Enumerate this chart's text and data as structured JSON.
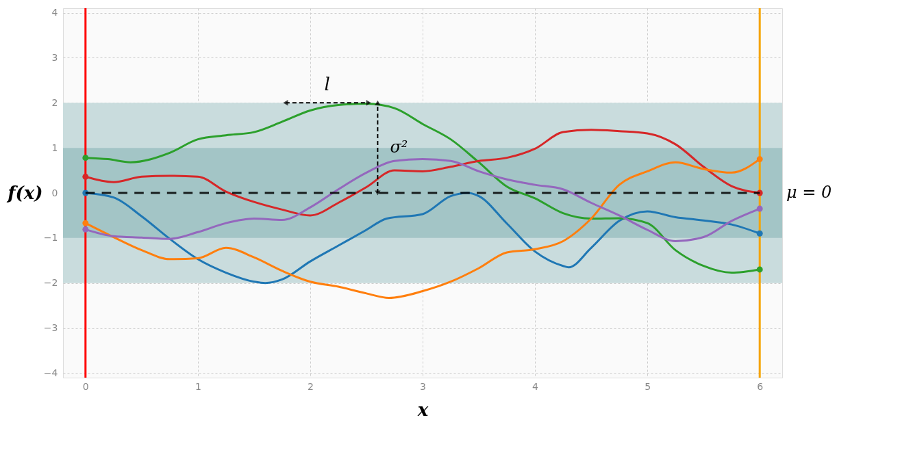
{
  "chart_data": {
    "type": "line",
    "xlabel": "x",
    "ylabel": "f(x)",
    "xlim": [
      -0.2,
      6.2
    ],
    "ylim": [
      -4.1,
      4.1
    ],
    "xticks": [
      0,
      1,
      2,
      3,
      4,
      5,
      6
    ],
    "yticks": [
      -4,
      -3,
      -2,
      -1,
      0,
      1,
      2,
      3,
      4
    ],
    "grid": true,
    "series": [
      {
        "color": "#1f77b4",
        "x": [
          0,
          0.25,
          0.5,
          0.75,
          1.0,
          1.25,
          1.5,
          1.6,
          1.75,
          2.0,
          2.25,
          2.5,
          2.68,
          3.0,
          3.25,
          3.4,
          3.5,
          3.75,
          4.0,
          4.25,
          4.3,
          4.5,
          4.75,
          5.0,
          5.25,
          5.5,
          5.75,
          6.0
        ],
        "values": [
          0.0,
          -0.1,
          -0.52,
          -1.02,
          -1.47,
          -1.77,
          -1.97,
          -2.0,
          -1.92,
          -1.52,
          -1.17,
          -0.82,
          -0.57,
          -0.47,
          -0.07,
          0.0,
          -0.07,
          -0.68,
          -1.3,
          -1.62,
          -1.65,
          -1.22,
          -0.62,
          -0.41,
          -0.54,
          -0.61,
          -0.7,
          -0.9
        ]
      },
      {
        "color": "#2ca02c",
        "x": [
          0,
          0.2,
          0.4,
          0.75,
          1.0,
          1.25,
          1.5,
          1.75,
          2.0,
          2.25,
          2.5,
          2.75,
          3.0,
          3.25,
          3.5,
          3.75,
          4.0,
          4.25,
          4.5,
          4.75,
          5.0,
          5.25,
          5.5,
          5.75,
          6.0
        ],
        "values": [
          0.78,
          0.75,
          0.68,
          0.89,
          1.19,
          1.28,
          1.35,
          1.58,
          1.83,
          1.95,
          1.98,
          1.88,
          1.53,
          1.19,
          0.68,
          0.14,
          -0.12,
          -0.45,
          -0.57,
          -0.56,
          -0.67,
          -1.27,
          -1.62,
          -1.77,
          -1.7
        ]
      },
      {
        "color": "#d62728",
        "x": [
          0,
          0.25,
          0.5,
          0.75,
          1.0,
          1.25,
          1.5,
          1.75,
          2.0,
          2.25,
          2.5,
          2.75,
          3.0,
          3.25,
          3.5,
          3.75,
          4.0,
          4.25,
          4.5,
          4.75,
          5.0,
          5.25,
          5.5,
          5.75,
          6.0
        ],
        "values": [
          0.36,
          0.24,
          0.36,
          0.38,
          0.36,
          0.03,
          -0.2,
          -0.37,
          -0.5,
          -0.22,
          0.13,
          0.5,
          0.48,
          0.58,
          0.71,
          0.78,
          0.98,
          1.35,
          1.4,
          1.37,
          1.32,
          1.08,
          0.58,
          0.15,
          0.0
        ]
      },
      {
        "color": "#ff7f0e",
        "x": [
          0,
          0.25,
          0.5,
          0.75,
          1.0,
          1.25,
          1.5,
          1.75,
          2.0,
          2.25,
          2.5,
          2.7,
          3.0,
          3.25,
          3.5,
          3.75,
          4.0,
          4.25,
          4.5,
          4.75,
          5.0,
          5.25,
          5.5,
          5.75,
          6.0
        ],
        "values": [
          -0.67,
          -0.98,
          -1.27,
          -1.47,
          -1.45,
          -1.22,
          -1.43,
          -1.73,
          -1.97,
          -2.08,
          -2.23,
          -2.33,
          -2.18,
          -1.97,
          -1.67,
          -1.32,
          -1.25,
          -1.07,
          -0.57,
          0.18,
          0.48,
          0.68,
          0.53,
          0.45,
          0.75
        ]
      },
      {
        "color": "#9467bd",
        "x": [
          0,
          0.25,
          0.5,
          0.75,
          1.0,
          1.25,
          1.5,
          1.75,
          2.0,
          2.25,
          2.5,
          2.75,
          3.0,
          3.25,
          3.5,
          3.75,
          4.0,
          4.25,
          4.5,
          4.75,
          5.0,
          5.25,
          5.5,
          5.75,
          6.0
        ],
        "values": [
          -0.81,
          -0.96,
          -0.99,
          -1.02,
          -0.87,
          -0.67,
          -0.57,
          -0.6,
          -0.32,
          0.08,
          0.45,
          0.71,
          0.75,
          0.71,
          0.48,
          0.3,
          0.18,
          0.08,
          -0.22,
          -0.5,
          -0.82,
          -1.07,
          -0.98,
          -0.62,
          -0.35
        ]
      },
      {
        "type": "scatter",
        "marker": "circle",
        "color": "#1f77b4",
        "x": [
          0,
          6
        ],
        "values": [
          0.0,
          -0.9
        ]
      },
      {
        "type": "scatter",
        "marker": "circle",
        "color": "#2ca02c",
        "x": [
          0,
          6
        ],
        "values": [
          0.78,
          -1.7
        ]
      },
      {
        "type": "scatter",
        "marker": "circle",
        "color": "#d62728",
        "x": [
          0,
          6
        ],
        "values": [
          0.36,
          0.0
        ]
      },
      {
        "type": "scatter",
        "marker": "circle",
        "color": "#ff7f0e",
        "x": [
          0,
          6
        ],
        "values": [
          -0.67,
          0.75
        ]
      },
      {
        "type": "scatter",
        "marker": "circle",
        "color": "#9467bd",
        "x": [
          0,
          6
        ],
        "values": [
          -0.81,
          -0.35
        ]
      }
    ],
    "bands": [
      {
        "axis": "y",
        "from": -2,
        "to": 2,
        "color": "#c9dcdd"
      },
      {
        "axis": "y",
        "from": -1,
        "to": 1,
        "color": "#a3c5c6"
      }
    ],
    "ref_lines": [
      {
        "axis": "y",
        "value": 0,
        "label": "μ = 0",
        "color": "#000000",
        "line_style": "dashed"
      },
      {
        "axis": "x",
        "value": 0,
        "color": "#ff0000"
      },
      {
        "axis": "x",
        "value": 6,
        "color": "#f5a300"
      }
    ],
    "annotations": [
      {
        "text": "l",
        "x": 2.15,
        "y": 2
      },
      {
        "text": "σ²",
        "x": 2.6,
        "y": 1
      }
    ]
  }
}
